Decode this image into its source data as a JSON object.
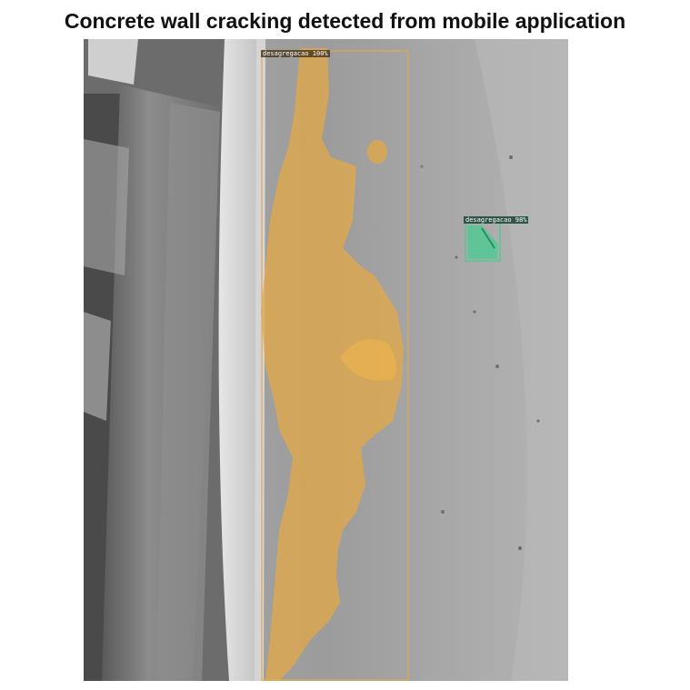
{
  "title": "Concrete wall cracking detected from mobile application",
  "detections": [
    {
      "label": "desagregacao 100%",
      "class_name": "desagregacao",
      "confidence": "100%",
      "color": "#e0a94a"
    },
    {
      "label": "desagregacao 98%",
      "class_name": "desagregacao",
      "confidence": "98%",
      "color": "#3fcf8e"
    }
  ]
}
